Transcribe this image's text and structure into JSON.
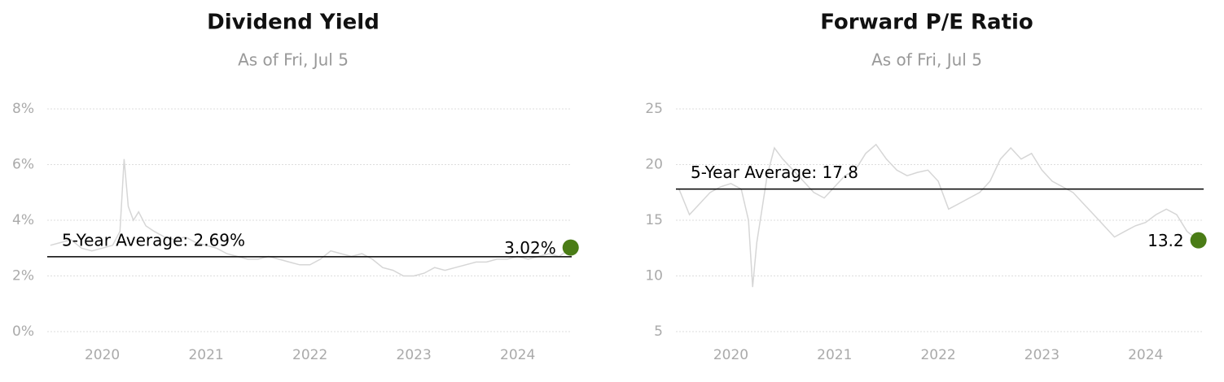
{
  "chart_data": [
    {
      "type": "line",
      "title": "Dividend Yield",
      "subtitle": "As of Fri, Jul 5",
      "x": [
        2019.5,
        2019.6,
        2019.7,
        2019.8,
        2019.9,
        2020.0,
        2020.1,
        2020.17,
        2020.21,
        2020.25,
        2020.3,
        2020.35,
        2020.42,
        2020.5,
        2020.6,
        2020.7,
        2020.8,
        2020.9,
        2021.0,
        2021.1,
        2021.2,
        2021.3,
        2021.4,
        2021.5,
        2021.6,
        2021.7,
        2021.8,
        2021.9,
        2022.0,
        2022.1,
        2022.2,
        2022.3,
        2022.4,
        2022.5,
        2022.6,
        2022.7,
        2022.8,
        2022.9,
        2023.0,
        2023.1,
        2023.2,
        2023.3,
        2023.4,
        2023.5,
        2023.6,
        2023.7,
        2023.8,
        2023.9,
        2024.0,
        2024.1,
        2024.2,
        2024.3,
        2024.4,
        2024.51
      ],
      "series": [
        {
          "color": "#d6d6d6",
          "values": [
            3.1,
            3.2,
            3.3,
            3.0,
            2.9,
            3.0,
            3.1,
            3.6,
            6.2,
            4.5,
            4.0,
            4.3,
            3.8,
            3.6,
            3.4,
            3.3,
            3.4,
            3.2,
            3.1,
            3.0,
            2.8,
            2.7,
            2.6,
            2.6,
            2.7,
            2.6,
            2.5,
            2.4,
            2.4,
            2.6,
            2.9,
            2.8,
            2.7,
            2.8,
            2.6,
            2.3,
            2.2,
            2.0,
            2.0,
            2.1,
            2.3,
            2.2,
            2.3,
            2.4,
            2.5,
            2.5,
            2.6,
            2.6,
            2.7,
            2.6,
            2.7,
            2.8,
            2.7,
            3.02
          ]
        }
      ],
      "average": {
        "value": 2.69,
        "label": "5-Year Average: 2.69%"
      },
      "current": {
        "value": 3.02,
        "label": "3.02%",
        "color": "#4a7c16"
      },
      "xlim": [
        2019.47,
        2024.52
      ],
      "xticks": [
        2020,
        2021,
        2022,
        2023,
        2024
      ],
      "ylim": [
        0,
        8
      ],
      "yticks": [
        {
          "value": 0,
          "label": "0%"
        },
        {
          "value": 2,
          "label": "2%"
        },
        {
          "value": 4,
          "label": "4%"
        },
        {
          "value": 6,
          "label": "6%"
        },
        {
          "value": 8,
          "label": "8%"
        }
      ],
      "grid": true
    },
    {
      "type": "line",
      "title": "Forward P/E Ratio",
      "subtitle": "As of Fri, Jul 5",
      "x": [
        2019.5,
        2019.6,
        2019.7,
        2019.8,
        2019.9,
        2020.0,
        2020.1,
        2020.17,
        2020.21,
        2020.25,
        2020.3,
        2020.35,
        2020.42,
        2020.5,
        2020.6,
        2020.7,
        2020.8,
        2020.9,
        2021.0,
        2021.1,
        2021.2,
        2021.3,
        2021.4,
        2021.5,
        2021.6,
        2021.7,
        2021.8,
        2021.9,
        2022.0,
        2022.1,
        2022.2,
        2022.3,
        2022.4,
        2022.5,
        2022.6,
        2022.7,
        2022.8,
        2022.9,
        2023.0,
        2023.1,
        2023.2,
        2023.3,
        2023.4,
        2023.5,
        2023.6,
        2023.7,
        2023.8,
        2023.9,
        2024.0,
        2024.1,
        2024.2,
        2024.3,
        2024.4,
        2024.51
      ],
      "series": [
        {
          "color": "#d6d6d6",
          "values": [
            17.8,
            15.5,
            16.5,
            17.5,
            18.0,
            18.3,
            17.8,
            15.0,
            9.0,
            13.0,
            16.0,
            19.0,
            21.5,
            20.5,
            19.5,
            18.5,
            17.5,
            17.0,
            18.0,
            19.0,
            19.5,
            21.0,
            21.8,
            20.5,
            19.5,
            19.0,
            19.3,
            19.5,
            18.5,
            16.0,
            16.5,
            17.0,
            17.5,
            18.5,
            20.5,
            21.5,
            20.5,
            21.0,
            19.5,
            18.5,
            18.0,
            17.5,
            16.5,
            15.5,
            14.5,
            13.5,
            14.0,
            14.5,
            14.8,
            15.5,
            16.0,
            15.5,
            14.0,
            13.2
          ]
        }
      ],
      "average": {
        "value": 17.8,
        "label": "5-Year Average: 17.8"
      },
      "current": {
        "value": 13.2,
        "label": "13.2",
        "color": "#4a7c16"
      },
      "xlim": [
        2019.47,
        2024.56
      ],
      "xticks": [
        2020,
        2021,
        2022,
        2023,
        2024
      ],
      "ylim": [
        5,
        25
      ],
      "yticks": [
        5,
        10,
        15,
        20,
        25
      ],
      "grid": true
    }
  ]
}
